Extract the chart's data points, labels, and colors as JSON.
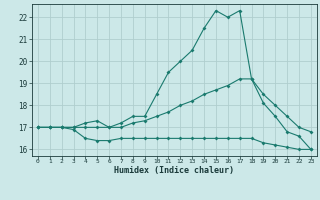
{
  "xlabel": "Humidex (Indice chaleur)",
  "x": [
    0,
    1,
    2,
    3,
    4,
    5,
    6,
    7,
    8,
    9,
    10,
    11,
    12,
    13,
    14,
    15,
    16,
    17,
    18,
    19,
    20,
    21,
    22,
    23
  ],
  "line_max": [
    17.0,
    17.0,
    17.0,
    17.0,
    17.2,
    17.3,
    17.0,
    17.2,
    17.5,
    17.5,
    18.5,
    19.5,
    20.0,
    20.5,
    21.5,
    22.3,
    22.0,
    22.3,
    19.2,
    18.1,
    17.5,
    16.8,
    16.6,
    16.0
  ],
  "line_mid": [
    17.0,
    17.0,
    17.0,
    17.0,
    17.0,
    17.0,
    17.0,
    17.0,
    17.2,
    17.3,
    17.5,
    17.7,
    18.0,
    18.2,
    18.5,
    18.7,
    18.9,
    19.2,
    19.2,
    18.5,
    18.0,
    17.5,
    17.0,
    16.8
  ],
  "line_min": [
    17.0,
    17.0,
    17.0,
    16.9,
    16.5,
    16.4,
    16.4,
    16.5,
    16.5,
    16.5,
    16.5,
    16.5,
    16.5,
    16.5,
    16.5,
    16.5,
    16.5,
    16.5,
    16.5,
    16.3,
    16.2,
    16.1,
    16.0,
    16.0
  ],
  "line_color": "#1a7a6e",
  "bg_color": "#cce8e8",
  "grid_color": "#b0cece",
  "ylim": [
    15.7,
    22.6
  ],
  "xlim": [
    -0.5,
    23.5
  ],
  "yticks": [
    16,
    17,
    18,
    19,
    20,
    21,
    22
  ],
  "xticks": [
    0,
    1,
    2,
    3,
    4,
    5,
    6,
    7,
    8,
    9,
    10,
    11,
    12,
    13,
    14,
    15,
    16,
    17,
    18,
    19,
    20,
    21,
    22,
    23
  ],
  "tick_color": "#1a3a3a"
}
